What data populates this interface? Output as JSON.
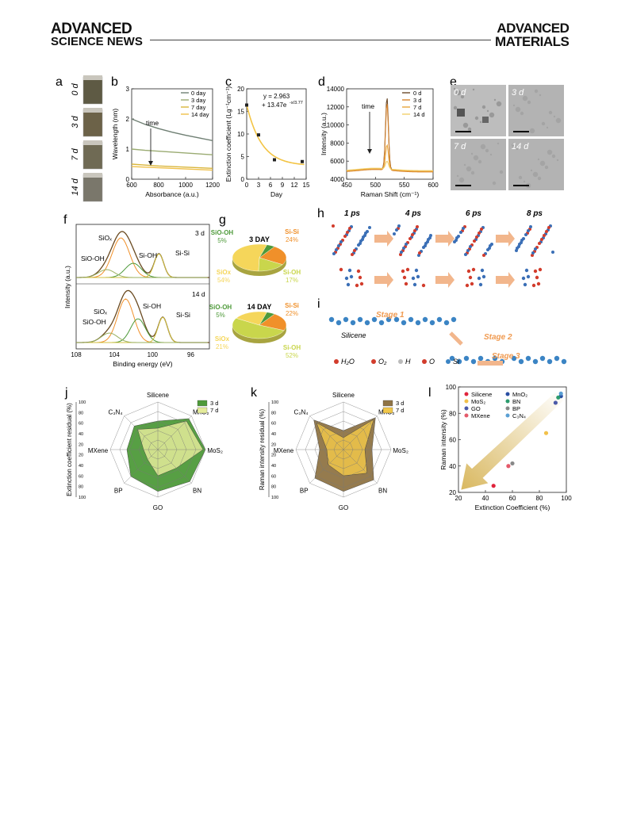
{
  "header": {
    "left_line1": "ADVANCED",
    "left_line2": "SCIENCE NEWS",
    "right_line1": "ADVANCED",
    "right_line2": "MATERIALS"
  },
  "panel_letters": {
    "a": "a",
    "b": "b",
    "c": "c",
    "d": "d",
    "e": "e",
    "f": "f",
    "g": "g",
    "h": "h",
    "i": "i",
    "j": "j",
    "k": "k",
    "l": "l"
  },
  "panel_a": {
    "labels": [
      "0 d",
      "3 d",
      "7 d",
      "14 d"
    ],
    "colors": [
      "#5e5a44",
      "#6c6248",
      "#6f6a54",
      "#7a776b"
    ]
  },
  "panel_e": {
    "labels": [
      "0 d",
      "3 d",
      "7 d",
      "14 d"
    ]
  },
  "chart_data": [
    {
      "id": "b",
      "type": "line",
      "xlabel": "Absorbance (a.u.)",
      "ylabel": "Wavelength (nm)",
      "xlim": [
        600,
        1200
      ],
      "ylim": [
        0,
        3
      ],
      "xticks": [
        "600",
        "800",
        "1000",
        "1200"
      ],
      "yticks": [
        "0",
        "1",
        "2",
        "3"
      ],
      "x": [
        600,
        700,
        800,
        900,
        1000,
        1100,
        1200
      ],
      "series": [
        {
          "name": "0 day",
          "color": "#6f7f73",
          "values": [
            2.0,
            1.82,
            1.68,
            1.56,
            1.46,
            1.37,
            1.28
          ]
        },
        {
          "name": "3 day",
          "color": "#9aab72",
          "values": [
            1.0,
            0.96,
            0.93,
            0.9,
            0.87,
            0.84,
            0.81
          ]
        },
        {
          "name": "7 day",
          "color": "#d9b63c",
          "values": [
            0.5,
            0.47,
            0.44,
            0.42,
            0.4,
            0.38,
            0.36
          ]
        },
        {
          "name": "14 day",
          "color": "#f0c048",
          "values": [
            0.42,
            0.4,
            0.38,
            0.36,
            0.34,
            0.32,
            0.3
          ]
        }
      ],
      "annotation": "time"
    },
    {
      "id": "c",
      "type": "scatter",
      "xlabel": "Day",
      "ylabel": "Extinction coefficient (Lg⁻¹cm⁻¹)",
      "xlim": [
        0,
        15
      ],
      "ylim": [
        0,
        20
      ],
      "xticks": [
        "0",
        "3",
        "6",
        "9",
        "12",
        "15"
      ],
      "yticks": [
        "0",
        "5",
        "10",
        "15",
        "20"
      ],
      "points": {
        "x": [
          0,
          3,
          7,
          14
        ],
        "y": [
          16.4,
          9.8,
          4.3,
          3.9
        ]
      },
      "fit_eq_line1": "y = 2.963",
      "fit_eq_line2": "+ 13.47e",
      "fit_eq_exp": "-x/3.77"
    },
    {
      "id": "d",
      "type": "line",
      "xlabel": "Raman Shift (cm⁻¹)",
      "ylabel": "Intensity (a.u.)",
      "xlim": [
        450,
        600
      ],
      "ylim": [
        3000,
        14000
      ],
      "xticks": [
        "450",
        "500",
        "550",
        "600"
      ],
      "yticks": [
        "4000",
        "6000",
        "8000",
        "10000",
        "12000",
        "14000"
      ],
      "series": [
        {
          "name": "0 d",
          "color": "#6b4a2a",
          "peak": 13000
        },
        {
          "name": "3 d",
          "color": "#d7842e",
          "peak": 12300
        },
        {
          "name": "7 d",
          "color": "#e8a43a",
          "peak": 7200
        },
        {
          "name": "14 d",
          "color": "#f2cf6a",
          "peak": 5200
        }
      ],
      "annotation": "time"
    },
    {
      "id": "f",
      "type": "line",
      "xlabel": "Binding energy (eV)",
      "ylabel": "Intensity (a.u.)",
      "xlim": [
        108,
        94
      ],
      "xticks": [
        "108",
        "104",
        "100",
        "96"
      ],
      "top_label": "3 d",
      "bottom_label": "14 d",
      "peak_labels_top": [
        "SiOₓ",
        "Si-OH",
        "Si-Si",
        "SiO-OH"
      ],
      "peak_labels_bottom": [
        "Si-OH",
        "SiOₓ",
        "Si-Si",
        "SiO-OH"
      ]
    },
    {
      "id": "g",
      "type": "pie",
      "pies": [
        {
          "title": "3 DAY",
          "slices": [
            {
              "name": "Si-Si",
              "value": 24,
              "color": "#f0902a"
            },
            {
              "name": "Si-OH",
              "value": 17,
              "color": "#c9d64c"
            },
            {
              "name": "SiOx",
              "value": 54,
              "color": "#f5d65a"
            },
            {
              "name": "SiO-OH",
              "value": 5,
              "color": "#4e9a3a"
            }
          ]
        },
        {
          "title": "14 DAY",
          "slices": [
            {
              "name": "Si-Si",
              "value": 22,
              "color": "#f0902a"
            },
            {
              "name": "Si-OH",
              "value": 52,
              "color": "#c9d64c"
            },
            {
              "name": "SiOx",
              "value": 21,
              "color": "#f5d65a"
            },
            {
              "name": "SiO-OH",
              "value": 5,
              "color": "#4e9a3a"
            }
          ]
        }
      ]
    },
    {
      "id": "j",
      "type": "radar",
      "ylabel": "Extinction coefficient residual (%)",
      "axes": [
        "Silicene",
        "MnO₂",
        "MoS₂",
        "BN",
        "GO",
        "BP",
        "MXene",
        "C₃N₄"
      ],
      "scale_ticks": [
        "100",
        "80",
        "60",
        "40",
        "20",
        "20",
        "40",
        "60",
        "80",
        "100"
      ],
      "series": [
        {
          "name": "3 d",
          "color": "#4e9a3a",
          "values": [
            60,
            92,
            100,
            95,
            88,
            80,
            65,
            70
          ]
        },
        {
          "name": "7 d",
          "color": "#e4eb9a",
          "values": [
            45,
            85,
            95,
            55,
            55,
            30,
            30,
            60
          ]
        }
      ]
    },
    {
      "id": "k",
      "type": "radar",
      "ylabel": "Raman intensity residual (%)",
      "axes": [
        "Silicene",
        "MnO₂",
        "MoS₂",
        "BN",
        "GO",
        "BP",
        "MXene",
        "C₃N₄"
      ],
      "scale_ticks": [
        "100",
        "80",
        "60",
        "40",
        "20",
        "20",
        "40",
        "60",
        "80",
        "100"
      ],
      "series": [
        {
          "name": "3 d",
          "color": "#8f7445",
          "values": [
            40,
            95,
            60,
            90,
            88,
            85,
            50,
            88
          ]
        },
        {
          "name": "7 d",
          "color": "#f1c74a",
          "values": [
            25,
            90,
            45,
            70,
            55,
            45,
            35,
            80
          ]
        }
      ]
    },
    {
      "id": "l",
      "type": "scatter",
      "xlabel": "Extinction Coefficient (%)",
      "ylabel": "Raman intensity (%)",
      "xlim": [
        20,
        100
      ],
      "ylim": [
        20,
        100
      ],
      "xticks": [
        "20",
        "40",
        "60",
        "80",
        "100"
      ],
      "yticks": [
        "20",
        "40",
        "60",
        "80",
        "100"
      ],
      "series": [
        {
          "name": "Silicene",
          "color": "#e0243c",
          "x": [
            46
          ],
          "y": [
            25
          ]
        },
        {
          "name": "MnO₂",
          "color": "#2a4fa3",
          "x": [
            96
          ],
          "y": [
            93
          ]
        },
        {
          "name": "MoS₂",
          "color": "#f2c14a",
          "x": [
            85
          ],
          "y": [
            65
          ]
        },
        {
          "name": "BN",
          "color": "#2c9c6e",
          "x": [
            94
          ],
          "y": [
            92
          ]
        },
        {
          "name": "GO",
          "color": "#4b5aa8",
          "x": [
            92
          ],
          "y": [
            88
          ]
        },
        {
          "name": "BP",
          "color": "#888888",
          "x": [
            60
          ],
          "y": [
            42
          ]
        },
        {
          "name": "MXene",
          "color": "#e45a6a",
          "x": [
            57
          ],
          "y": [
            40
          ]
        },
        {
          "name": "C₃N₄",
          "color": "#5a9fd4",
          "x": [
            96
          ],
          "y": [
            95
          ]
        }
      ]
    }
  ],
  "panel_h": {
    "times": [
      "1 ps",
      "4 ps",
      "6 ps",
      "8 ps"
    ]
  },
  "panel_i": {
    "silicene": "Silicene",
    "stage1": "Stage 1",
    "stage2": "Stage 2",
    "stage3": "Stage 3",
    "legend": [
      "H₂O",
      "O₂",
      "H",
      "O",
      "Si"
    ]
  }
}
